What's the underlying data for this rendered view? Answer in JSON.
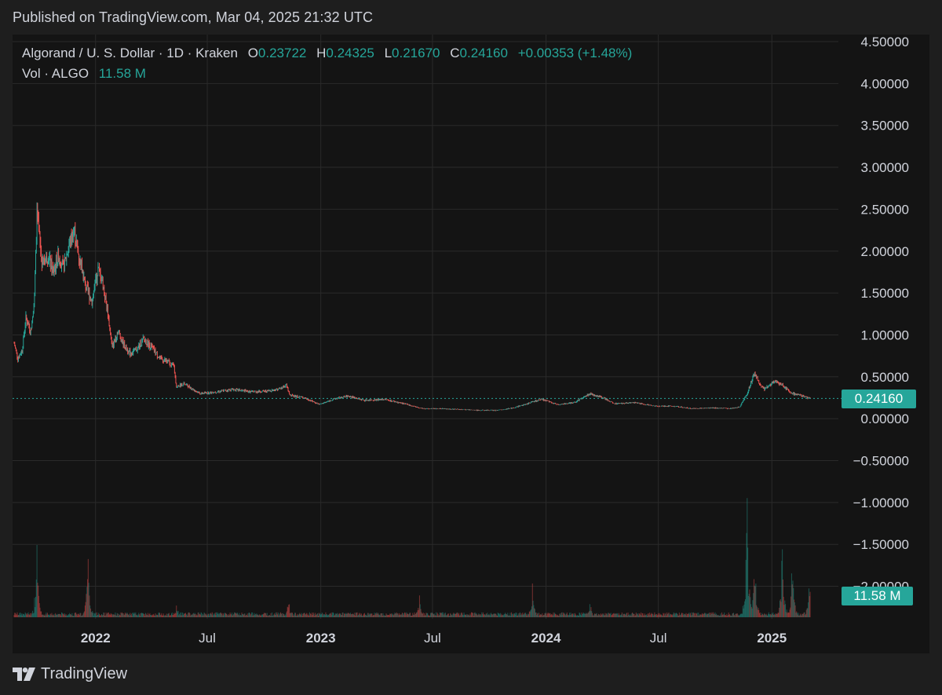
{
  "header": {
    "published": "Published on TradingView.com, Mar 04, 2025 21:32 UTC"
  },
  "legend": {
    "symbol": "Algorand / U. S. Dollar · 1D · Kraken",
    "open_label": "O",
    "open": "0.23722",
    "high_label": "H",
    "high": "0.24325",
    "low_label": "L",
    "low": "0.21670",
    "close_label": "C",
    "close": "0.24160",
    "change": "+0.00353 (+1.48%)",
    "vol_label": "Vol · ALGO",
    "vol_value": "11.58 M"
  },
  "price_tag": "0.24160",
  "volume_tag": "11.58 M",
  "footer": {
    "brand": "TradingView",
    "logo_icon": "tradingview-logo-icon"
  },
  "colors": {
    "up": "#26a69a",
    "down": "#ef5350",
    "grid": "#2a2a2a",
    "text": "#d1d4dc"
  },
  "chart_data": {
    "type": "candlestick",
    "title": "Algorand / U. S. Dollar · 1D · Kraken",
    "y_ticks": [
      "4.50000",
      "4.00000",
      "3.50000",
      "3.00000",
      "2.50000",
      "2.00000",
      "1.50000",
      "1.00000",
      "0.50000",
      "0.00000",
      "−0.50000",
      "−1.00000",
      "−1.50000",
      "−2.00000"
    ],
    "y_range": [
      -2.3,
      4.5
    ],
    "x_ticks": [
      {
        "label": "2022",
        "date": "2022-01-01",
        "bold": true
      },
      {
        "label": "Jul",
        "date": "2022-07-01",
        "bold": false
      },
      {
        "label": "2023",
        "date": "2023-01-01",
        "bold": true
      },
      {
        "label": "Jul",
        "date": "2023-07-01",
        "bold": false
      },
      {
        "label": "2024",
        "date": "2024-01-01",
        "bold": true
      },
      {
        "label": "Jul",
        "date": "2024-07-01",
        "bold": false
      },
      {
        "label": "2025",
        "date": "2025-01-01",
        "bold": true
      }
    ],
    "x_range": [
      "2021-08-22",
      "2025-03-04"
    ],
    "last_close": 0.2416,
    "close_series": [
      {
        "date": "2021-08-22",
        "close": 0.9
      },
      {
        "date": "2021-08-28",
        "close": 0.72
      },
      {
        "date": "2021-09-04",
        "close": 0.82
      },
      {
        "date": "2021-09-10",
        "close": 1.2
      },
      {
        "date": "2021-09-18",
        "close": 1.05
      },
      {
        "date": "2021-09-24",
        "close": 1.45
      },
      {
        "date": "2021-09-28",
        "close": 2.45
      },
      {
        "date": "2021-10-06",
        "close": 1.85
      },
      {
        "date": "2021-10-16",
        "close": 1.95
      },
      {
        "date": "2021-10-24",
        "close": 1.75
      },
      {
        "date": "2021-11-02",
        "close": 1.95
      },
      {
        "date": "2021-11-10",
        "close": 1.8
      },
      {
        "date": "2021-11-18",
        "close": 2.05
      },
      {
        "date": "2021-11-27",
        "close": 2.25
      },
      {
        "date": "2021-12-06",
        "close": 1.9
      },
      {
        "date": "2021-12-15",
        "close": 1.6
      },
      {
        "date": "2021-12-26",
        "close": 1.4
      },
      {
        "date": "2022-01-05",
        "close": 1.78
      },
      {
        "date": "2022-01-12",
        "close": 1.65
      },
      {
        "date": "2022-01-20",
        "close": 1.3
      },
      {
        "date": "2022-01-28",
        "close": 0.85
      },
      {
        "date": "2022-02-06",
        "close": 1.05
      },
      {
        "date": "2022-02-16",
        "close": 0.88
      },
      {
        "date": "2022-02-26",
        "close": 0.78
      },
      {
        "date": "2022-03-08",
        "close": 0.82
      },
      {
        "date": "2022-03-20",
        "close": 0.95
      },
      {
        "date": "2022-04-02",
        "close": 0.85
      },
      {
        "date": "2022-04-15",
        "close": 0.72
      },
      {
        "date": "2022-04-28",
        "close": 0.68
      },
      {
        "date": "2022-05-08",
        "close": 0.62
      },
      {
        "date": "2022-05-12",
        "close": 0.38
      },
      {
        "date": "2022-05-25",
        "close": 0.42
      },
      {
        "date": "2022-06-08",
        "close": 0.35
      },
      {
        "date": "2022-06-20",
        "close": 0.3
      },
      {
        "date": "2022-07-15",
        "close": 0.32
      },
      {
        "date": "2022-08-12",
        "close": 0.35
      },
      {
        "date": "2022-09-10",
        "close": 0.32
      },
      {
        "date": "2022-10-08",
        "close": 0.33
      },
      {
        "date": "2022-10-28",
        "close": 0.36
      },
      {
        "date": "2022-11-06",
        "close": 0.4
      },
      {
        "date": "2022-11-12",
        "close": 0.28
      },
      {
        "date": "2022-12-05",
        "close": 0.25
      },
      {
        "date": "2022-12-30",
        "close": 0.17
      },
      {
        "date": "2023-01-25",
        "close": 0.24
      },
      {
        "date": "2023-02-15",
        "close": 0.27
      },
      {
        "date": "2023-03-12",
        "close": 0.22
      },
      {
        "date": "2023-04-15",
        "close": 0.23
      },
      {
        "date": "2023-05-15",
        "close": 0.18
      },
      {
        "date": "2023-06-15",
        "close": 0.12
      },
      {
        "date": "2023-07-15",
        "close": 0.12
      },
      {
        "date": "2023-08-15",
        "close": 0.11
      },
      {
        "date": "2023-09-15",
        "close": 0.1
      },
      {
        "date": "2023-10-15",
        "close": 0.1
      },
      {
        "date": "2023-11-10",
        "close": 0.13
      },
      {
        "date": "2023-12-10",
        "close": 0.2
      },
      {
        "date": "2023-12-25",
        "close": 0.23
      },
      {
        "date": "2024-01-20",
        "close": 0.17
      },
      {
        "date": "2024-02-15",
        "close": 0.19
      },
      {
        "date": "2024-03-12",
        "close": 0.3
      },
      {
        "date": "2024-04-05",
        "close": 0.24
      },
      {
        "date": "2024-04-20",
        "close": 0.18
      },
      {
        "date": "2024-05-25",
        "close": 0.19
      },
      {
        "date": "2024-06-25",
        "close": 0.15
      },
      {
        "date": "2024-07-25",
        "close": 0.15
      },
      {
        "date": "2024-08-25",
        "close": 0.12
      },
      {
        "date": "2024-09-25",
        "close": 0.13
      },
      {
        "date": "2024-10-25",
        "close": 0.12
      },
      {
        "date": "2024-11-10",
        "close": 0.14
      },
      {
        "date": "2024-11-22",
        "close": 0.3
      },
      {
        "date": "2024-12-04",
        "close": 0.55
      },
      {
        "date": "2024-12-12",
        "close": 0.42
      },
      {
        "date": "2024-12-20",
        "close": 0.35
      },
      {
        "date": "2025-01-05",
        "close": 0.45
      },
      {
        "date": "2025-01-18",
        "close": 0.4
      },
      {
        "date": "2025-02-03",
        "close": 0.3
      },
      {
        "date": "2025-02-20",
        "close": 0.27
      },
      {
        "date": "2025-03-04",
        "close": 0.2416
      }
    ],
    "volume_spikes": [
      {
        "date": "2021-09-28",
        "volume_m": 110
      },
      {
        "date": "2021-12-20",
        "volume_m": 95
      },
      {
        "date": "2022-05-12",
        "volume_m": 25
      },
      {
        "date": "2022-11-10",
        "volume_m": 30
      },
      {
        "date": "2023-06-10",
        "volume_m": 40
      },
      {
        "date": "2023-12-10",
        "volume_m": 48
      },
      {
        "date": "2024-03-12",
        "volume_m": 28
      },
      {
        "date": "2024-11-22",
        "volume_m": 180
      },
      {
        "date": "2024-12-04",
        "volume_m": 110
      },
      {
        "date": "2025-01-18",
        "volume_m": 120
      },
      {
        "date": "2025-02-03",
        "volume_m": 90
      },
      {
        "date": "2025-03-03",
        "volume_m": 60
      }
    ],
    "volume_max_m": 200
  }
}
